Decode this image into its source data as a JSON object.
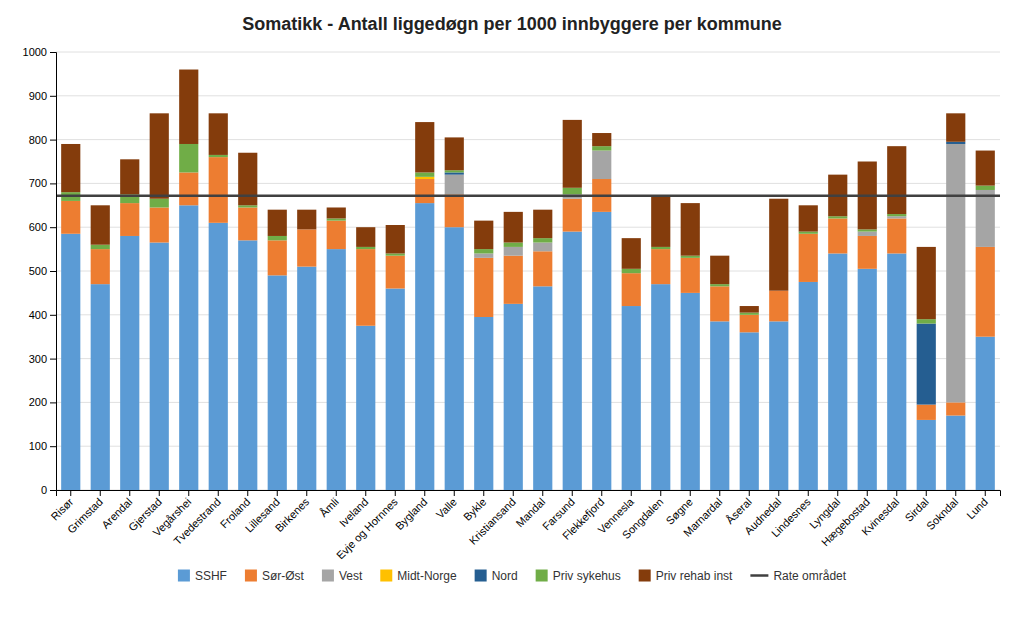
{
  "chart_data": {
    "type": "bar",
    "title": "Somatikk - Antall liggedøgn per 1000 innbyggere per kommune",
    "stacked": true,
    "grid": true,
    "legend": "bottom",
    "categories": [
      "Risør",
      "Grimstad",
      "Arendal",
      "Gjerstad",
      "Vegårshei",
      "Tvedestrand",
      "Froland",
      "Lillesand",
      "Birkenes",
      "Åmli",
      "Iveland",
      "Evje og Hornnes",
      "Bygland",
      "Valle",
      "Bykle",
      "Kristiansand",
      "Mandal",
      "Farsund",
      "Flekkefjord",
      "Vennesla",
      "Songdalen",
      "Søgne",
      "Marnardal",
      "Åseral",
      "Audnedal",
      "Lindesnes",
      "Lyngdal",
      "Hægebostad",
      "Kvinesdal",
      "Sirdal",
      "Sokndal",
      "Lund"
    ],
    "series": [
      {
        "name": "SSHF",
        "color": "#5B9BD5",
        "values": [
          585,
          470,
          580,
          565,
          650,
          610,
          570,
          490,
          510,
          550,
          375,
          460,
          655,
          600,
          395,
          425,
          465,
          590,
          635,
          420,
          470,
          450,
          385,
          360,
          385,
          475,
          540,
          505,
          540,
          160,
          170,
          350
        ]
      },
      {
        "name": "Sør-Øst",
        "color": "#ED7D31",
        "values": [
          75,
          80,
          75,
          80,
          75,
          150,
          75,
          80,
          85,
          65,
          175,
          75,
          55,
          75,
          135,
          110,
          80,
          75,
          75,
          75,
          80,
          80,
          80,
          40,
          70,
          110,
          80,
          75,
          80,
          35,
          30,
          205
        ]
      },
      {
        "name": "Vest",
        "color": "#A5A5A5",
        "values": [
          0,
          0,
          0,
          0,
          0,
          0,
          0,
          0,
          0,
          0,
          0,
          0,
          0,
          45,
          10,
          20,
          20,
          10,
          65,
          0,
          0,
          0,
          0,
          0,
          0,
          0,
          0,
          10,
          5,
          0,
          590,
          130
        ]
      },
      {
        "name": "Midt-Norge",
        "color": "#FFC000",
        "values": [
          0,
          0,
          0,
          0,
          0,
          0,
          0,
          0,
          0,
          0,
          0,
          0,
          5,
          0,
          0,
          0,
          0,
          0,
          0,
          0,
          0,
          0,
          0,
          0,
          0,
          0,
          0,
          0,
          0,
          0,
          0,
          0
        ]
      },
      {
        "name": "Nord",
        "color": "#255E91",
        "values": [
          0,
          0,
          0,
          0,
          0,
          0,
          0,
          0,
          0,
          0,
          0,
          0,
          0,
          5,
          0,
          0,
          0,
          0,
          0,
          0,
          0,
          0,
          0,
          0,
          0,
          0,
          0,
          0,
          0,
          185,
          5,
          0
        ]
      },
      {
        "name": "Priv sykehus",
        "color": "#70AD47",
        "values": [
          20,
          10,
          20,
          20,
          65,
          5,
          5,
          10,
          0,
          5,
          5,
          5,
          10,
          5,
          10,
          10,
          10,
          15,
          10,
          10,
          5,
          5,
          5,
          5,
          0,
          5,
          5,
          5,
          5,
          10,
          0,
          10
        ]
      },
      {
        "name": "Priv rehab inst",
        "color": "#843C0C",
        "values": [
          110,
          90,
          80,
          195,
          170,
          95,
          120,
          60,
          45,
          25,
          45,
          65,
          115,
          75,
          65,
          70,
          65,
          155,
          30,
          70,
          115,
          120,
          65,
          15,
          210,
          60,
          95,
          155,
          155,
          165,
          65,
          80
        ]
      }
    ],
    "rate_line": {
      "name": "Rate området",
      "value": 672,
      "color": "#404040"
    },
    "ylim": [
      0,
      1000
    ],
    "yticks": [
      0,
      100,
      200,
      300,
      400,
      500,
      600,
      700,
      800,
      900,
      1000
    ]
  }
}
